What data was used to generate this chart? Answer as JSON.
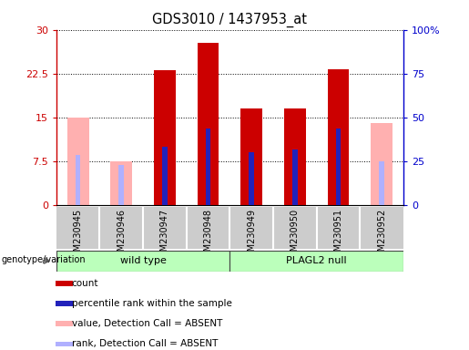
{
  "title": "GDS3010 / 1437953_at",
  "samples": [
    "GSM230945",
    "GSM230946",
    "GSM230947",
    "GSM230948",
    "GSM230949",
    "GSM230950",
    "GSM230951",
    "GSM230952"
  ],
  "count_values": [
    0,
    0,
    23.0,
    27.8,
    16.5,
    16.5,
    23.3,
    0
  ],
  "rank_values_left": [
    0,
    0,
    10.0,
    13.0,
    9.0,
    9.5,
    13.0,
    0
  ],
  "absent_value_values": [
    15.0,
    7.5,
    0,
    0,
    0,
    0,
    0,
    14.0
  ],
  "absent_rank_values_left": [
    8.5,
    6.8,
    0,
    0,
    0,
    0,
    0,
    7.5
  ],
  "is_absent": [
    true,
    true,
    false,
    false,
    false,
    false,
    false,
    true
  ],
  "ylim_left": [
    0,
    30
  ],
  "ylim_right": [
    0,
    100
  ],
  "yticks_left": [
    0,
    7.5,
    15,
    22.5,
    30
  ],
  "yticks_right": [
    0,
    25,
    50,
    75,
    100
  ],
  "ytick_labels_left": [
    "0",
    "7.5",
    "15",
    "22.5",
    "30"
  ],
  "ytick_labels_right": [
    "0",
    "25",
    "50",
    "75",
    "100%"
  ],
  "color_count": "#cc0000",
  "color_rank": "#2222bb",
  "color_absent_value": "#ffb0b0",
  "color_absent_rank": "#b0b0ff",
  "color_group_bg": "#bbffbb",
  "group_label": "genotype/variation",
  "bar_width": 0.5,
  "rank_bar_width": 0.12
}
